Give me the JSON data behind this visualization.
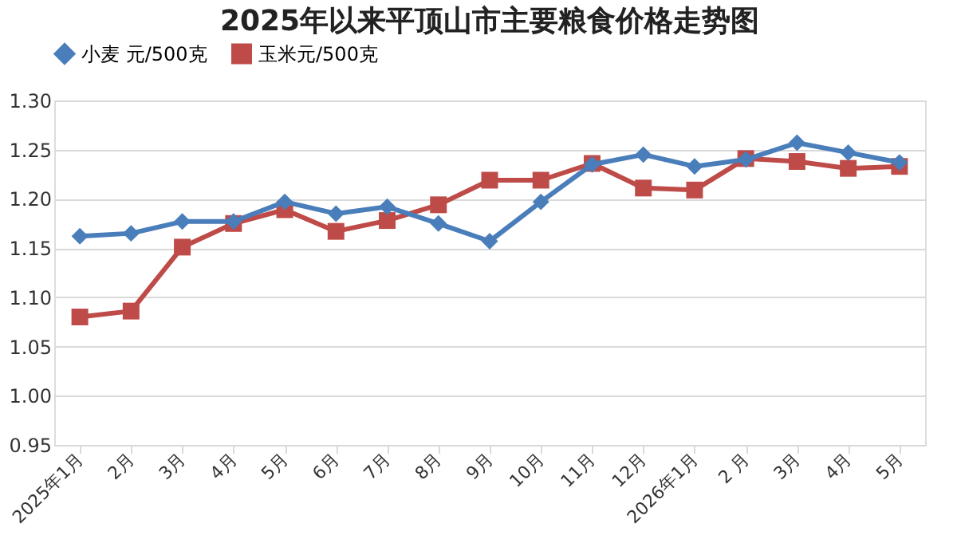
{
  "chart_data": {
    "type": "line",
    "title": "2025年以来平顶山市主要粮食价格走势图",
    "categories": [
      "2025年1月",
      "2月",
      "3月",
      "4月",
      "5月",
      "6月",
      "7月",
      "8月",
      "9月",
      "10月",
      "11月",
      "12月",
      "2026年1月",
      "2 月",
      "3月",
      "4月",
      "5月"
    ],
    "series": [
      {
        "name": "小麦 元/500克",
        "color": "#4a7ebb",
        "marker": "diamond",
        "values": [
          1.162,
          1.165,
          1.177,
          1.177,
          1.197,
          1.185,
          1.192,
          1.175,
          1.157,
          1.197,
          1.235,
          1.245,
          1.233,
          1.24,
          1.257,
          1.247,
          1.237
        ]
      },
      {
        "name": "玉米元/500克",
        "color": "#be4b48",
        "marker": "square",
        "values": [
          1.08,
          1.086,
          1.151,
          1.175,
          1.189,
          1.167,
          1.178,
          1.194,
          1.219,
          1.219,
          1.236,
          1.211,
          1.209,
          1.241,
          1.238,
          1.231,
          1.233
        ]
      }
    ],
    "ylim": [
      0.95,
      1.3
    ],
    "yticks": [
      {
        "value": 0.95,
        "label": "0.95"
      },
      {
        "value": 1.0,
        "label": "1.00"
      },
      {
        "value": 1.05,
        "label": "1.05"
      },
      {
        "value": 1.1,
        "label": "1.10"
      },
      {
        "value": 1.15,
        "label": "1.15"
      },
      {
        "value": 1.2,
        "label": "1.20"
      },
      {
        "value": 1.25,
        "label": "1.25"
      },
      {
        "value": 1.3,
        "label": "1.30"
      }
    ],
    "grid": "y",
    "legend": "top"
  }
}
